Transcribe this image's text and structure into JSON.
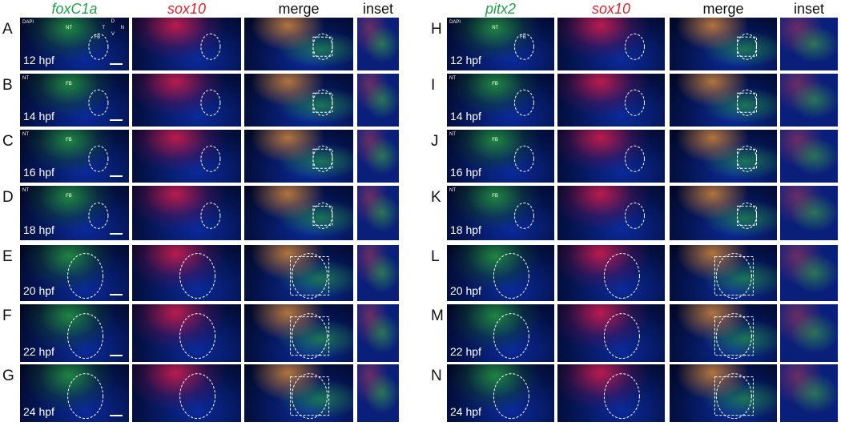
{
  "left": {
    "headers": [
      "foxC1a",
      "sox10",
      "merge",
      "inset"
    ],
    "rows": [
      {
        "letter": "A",
        "time": "12 hpf",
        "labels": [
          "DAPI",
          "NT",
          "FB"
        ],
        "compass": [
          "D",
          "T",
          "N",
          "V"
        ]
      },
      {
        "letter": "B",
        "time": "14 hpf",
        "labels": [
          "NT",
          "FB"
        ]
      },
      {
        "letter": "C",
        "time": "16 hpf",
        "labels": [
          "NT",
          "FB"
        ]
      },
      {
        "letter": "D",
        "time": "18 hpf",
        "labels": [
          "NT",
          "FB"
        ]
      },
      {
        "letter": "E",
        "time": "20 hpf"
      },
      {
        "letter": "F",
        "time": "22 hpf"
      },
      {
        "letter": "G",
        "time": "24 hpf"
      }
    ]
  },
  "right": {
    "headers": [
      "pitx2",
      "sox10",
      "merge",
      "inset"
    ],
    "rows": [
      {
        "letter": "H",
        "time": "12 hpf",
        "labels": [
          "DAPI",
          "NT",
          "FB"
        ]
      },
      {
        "letter": "I",
        "time": "14 hpf",
        "labels": [
          "NT",
          "FB"
        ]
      },
      {
        "letter": "J",
        "time": "16 hpf",
        "labels": [
          "NT",
          "FB"
        ]
      },
      {
        "letter": "K",
        "time": "18 hpf",
        "labels": [
          "NT",
          "FB"
        ]
      },
      {
        "letter": "L",
        "time": "20 hpf"
      },
      {
        "letter": "M",
        "time": "22 hpf"
      },
      {
        "letter": "N",
        "time": "24 hpf"
      }
    ]
  }
}
